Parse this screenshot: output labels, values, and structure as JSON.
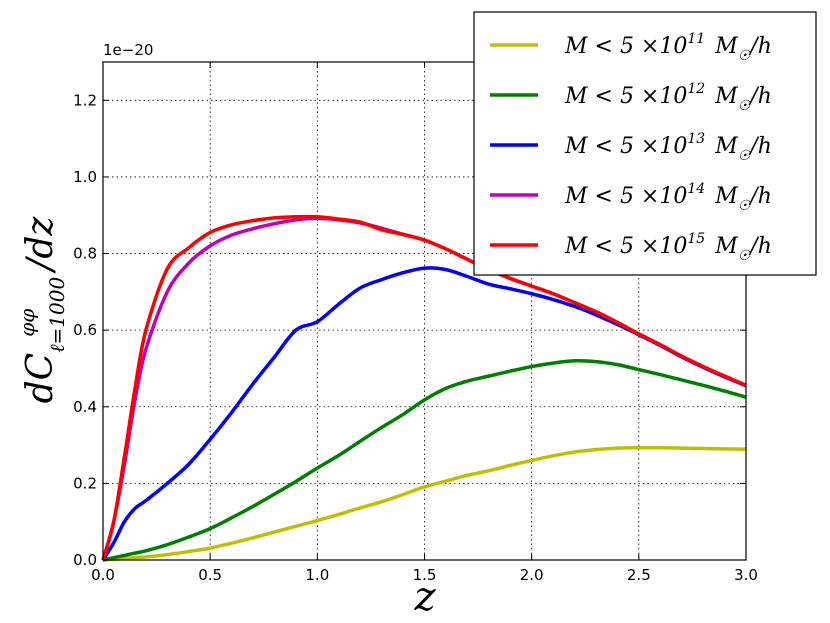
{
  "chart_data": {
    "type": "line",
    "xlabel": "z",
    "ylabel": "dC_ℓ=1000^φφ/dz",
    "offset_text": "1e−20",
    "xlim": [
      0.0,
      3.0
    ],
    "ylim": [
      0.0,
      1.3
    ],
    "grid": true,
    "legend_position": "top-right",
    "xticks": [
      0.0,
      0.5,
      1.0,
      1.5,
      2.0,
      2.5,
      3.0
    ],
    "xtick_labels": [
      "0.0",
      "0.5",
      "1.0",
      "1.5",
      "2.0",
      "2.5",
      "3.0"
    ],
    "yticks": [
      0.0,
      0.2,
      0.4,
      0.6,
      0.8,
      1.0,
      1.2
    ],
    "ytick_labels": [
      "0.0",
      "0.2",
      "0.4",
      "0.6",
      "0.8",
      "1.0",
      "1.2"
    ],
    "x": [
      0.0,
      0.05,
      0.1,
      0.15,
      0.2,
      0.3,
      0.4,
      0.5,
      0.6,
      0.7,
      0.8,
      0.9,
      1.0,
      1.1,
      1.2,
      1.3,
      1.4,
      1.5,
      1.6,
      1.7,
      1.8,
      1.9,
      2.0,
      2.1,
      2.2,
      2.3,
      2.4,
      2.5,
      2.6,
      2.7,
      2.8,
      2.9,
      3.0
    ],
    "series": [
      {
        "legend": {
          "mass_prefix": "M < 5 ×10",
          "exponent": "11",
          "unit": "M",
          "sun": "☉",
          "per_h": "/h"
        },
        "color": "#bfbf00",
        "values": [
          0.0,
          0.002,
          0.004,
          0.006,
          0.008,
          0.014,
          0.022,
          0.031,
          0.044,
          0.058,
          0.073,
          0.088,
          0.103,
          0.119,
          0.136,
          0.152,
          0.171,
          0.191,
          0.206,
          0.221,
          0.233,
          0.247,
          0.26,
          0.272,
          0.282,
          0.288,
          0.292,
          0.293,
          0.293,
          0.292,
          0.291,
          0.29,
          0.289
        ]
      },
      {
        "legend": {
          "mass_prefix": "M < 5 ×10",
          "exponent": "12",
          "unit": "M",
          "sun": "☉",
          "per_h": "/h"
        },
        "color": "#008000",
        "values": [
          0.0,
          0.006,
          0.012,
          0.018,
          0.024,
          0.04,
          0.06,
          0.082,
          0.11,
          0.14,
          0.172,
          0.205,
          0.24,
          0.273,
          0.31,
          0.346,
          0.38,
          0.418,
          0.448,
          0.467,
          0.48,
          0.493,
          0.505,
          0.514,
          0.52,
          0.518,
          0.51,
          0.497,
          0.484,
          0.47,
          0.456,
          0.441,
          0.425
        ]
      },
      {
        "legend": {
          "mass_prefix": "M < 5 ×10",
          "exponent": "13",
          "unit": "M",
          "sun": "☉",
          "per_h": "/h"
        },
        "color": "#0000ff",
        "values": [
          0.0,
          0.045,
          0.1,
          0.135,
          0.155,
          0.2,
          0.25,
          0.315,
          0.385,
          0.46,
          0.53,
          0.6,
          0.622,
          0.668,
          0.71,
          0.732,
          0.75,
          0.762,
          0.758,
          0.74,
          0.72,
          0.708,
          0.695,
          0.68,
          0.662,
          0.64,
          0.615,
          0.588,
          0.56,
          0.53,
          0.503,
          0.478,
          0.455
        ]
      },
      {
        "legend": {
          "mass_prefix": "M < 5 ×10",
          "exponent": "14",
          "unit": "M",
          "sun": "☉",
          "per_h": "/h"
        },
        "color": "#bf00bf",
        "values": [
          0.0,
          0.1,
          0.25,
          0.42,
          0.55,
          0.7,
          0.775,
          0.82,
          0.848,
          0.865,
          0.878,
          0.888,
          0.892,
          0.888,
          0.88,
          0.866,
          0.85,
          0.835,
          0.812,
          0.785,
          0.758,
          0.735,
          0.715,
          0.695,
          0.672,
          0.648,
          0.62,
          0.59,
          0.562,
          0.532,
          0.505,
          0.48,
          0.456
        ]
      },
      {
        "legend": {
          "mass_prefix": "M < 5 ×10",
          "exponent": "15",
          "unit": "M",
          "sun": "☉",
          "per_h": "/h"
        },
        "color": "#ff0000",
        "values": [
          0.0,
          0.1,
          0.27,
          0.45,
          0.6,
          0.76,
          0.815,
          0.855,
          0.875,
          0.886,
          0.893,
          0.896,
          0.896,
          0.89,
          0.882,
          0.862,
          0.85,
          0.835,
          0.812,
          0.785,
          0.758,
          0.735,
          0.715,
          0.695,
          0.672,
          0.648,
          0.62,
          0.59,
          0.562,
          0.532,
          0.505,
          0.48,
          0.456
        ]
      }
    ]
  }
}
